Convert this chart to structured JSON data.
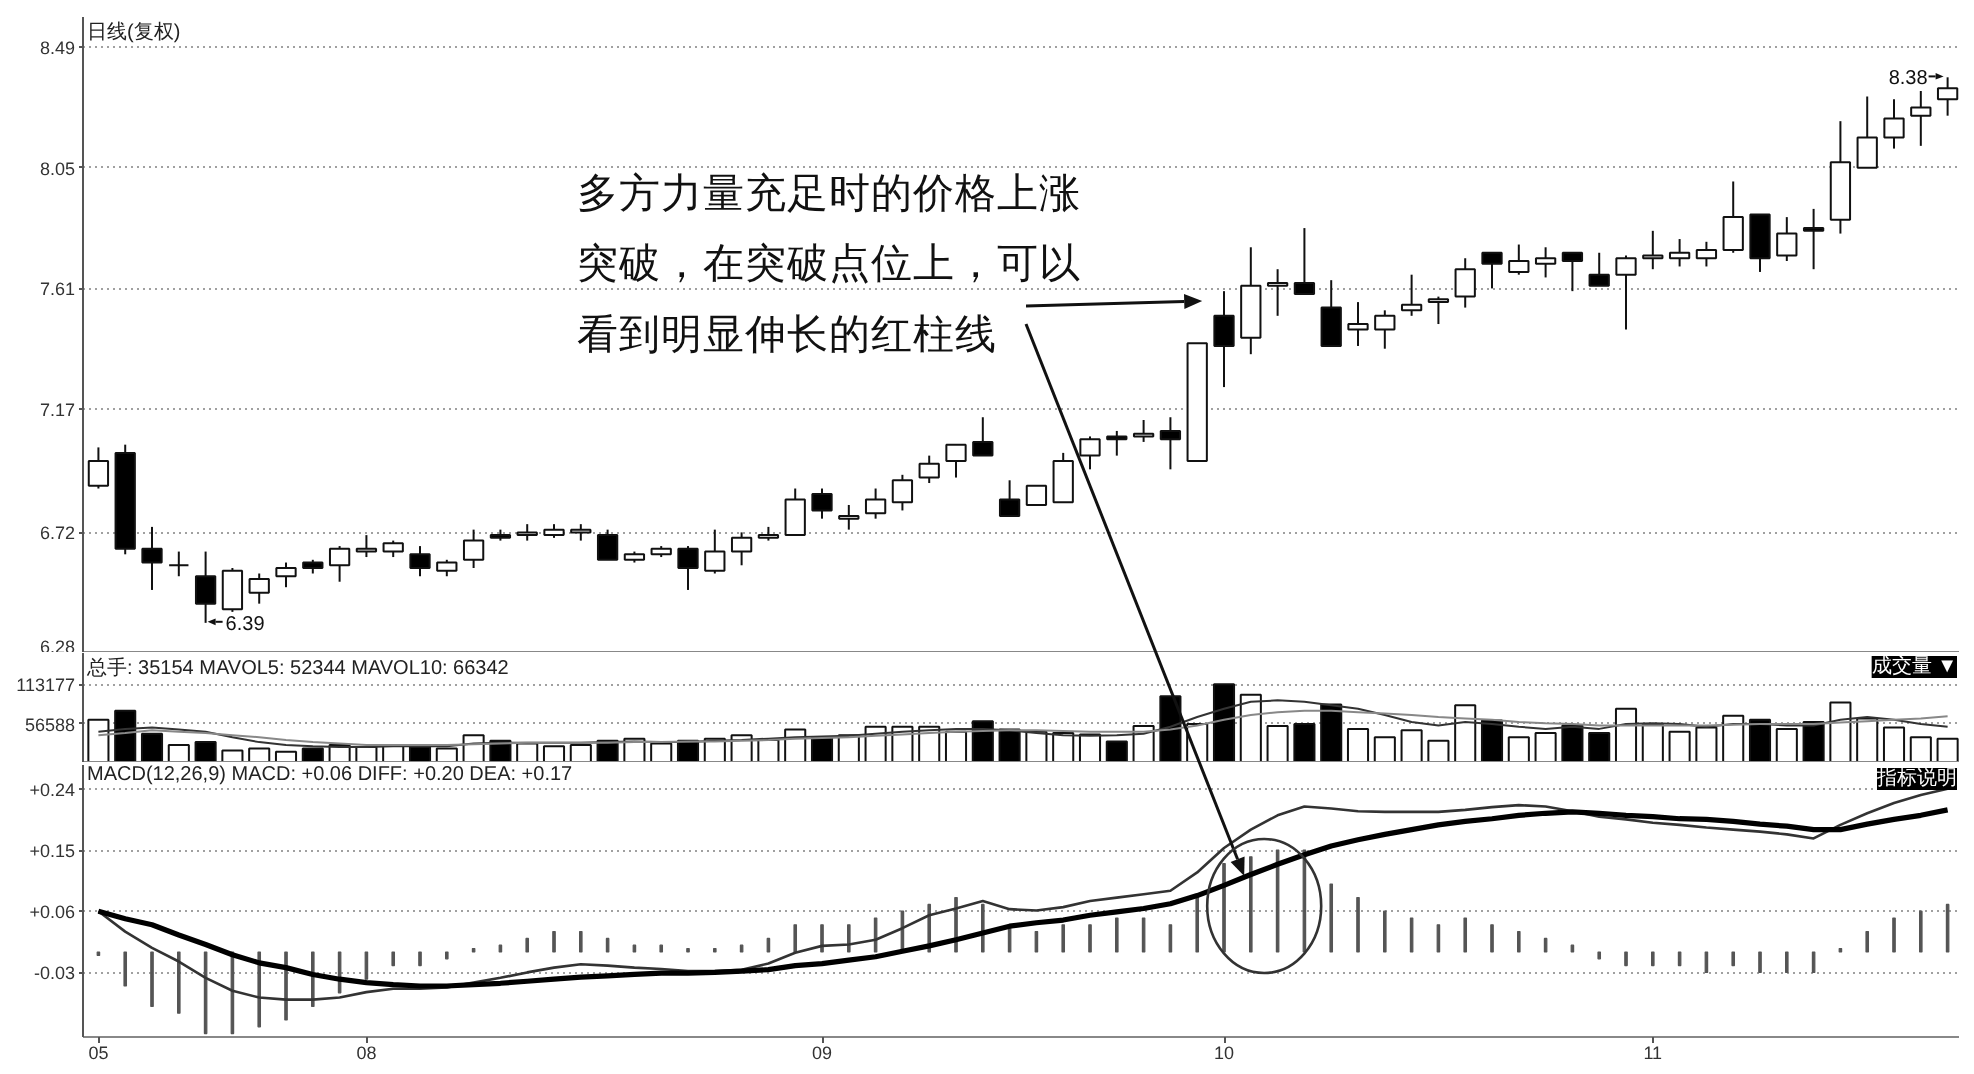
{
  "chart_data": [
    {
      "type": "candlestick",
      "title": "日线(复权)",
      "categories": [
        "05",
        null,
        null,
        null,
        null,
        null,
        null,
        null,
        null,
        null,
        "08",
        null,
        null,
        null,
        null,
        null,
        null,
        null,
        null,
        null,
        null,
        null,
        null,
        null,
        null,
        null,
        null,
        "09",
        null,
        null,
        null,
        null,
        null,
        null,
        null,
        null,
        null,
        null,
        null,
        null,
        null,
        null,
        "10",
        null,
        null,
        null,
        null,
        null,
        null,
        null,
        null,
        null,
        null,
        null,
        null,
        null,
        null,
        null,
        "11",
        null,
        null,
        null,
        null,
        null,
        null,
        null,
        null,
        null,
        null,
        null
      ],
      "ohlc": [
        [
          6.89,
          7.03,
          6.88,
          6.98
        ],
        [
          7.01,
          7.04,
          6.64,
          6.66
        ],
        [
          6.66,
          6.74,
          6.51,
          6.61
        ],
        [
          6.6,
          6.65,
          6.56,
          6.6
        ],
        [
          6.56,
          6.65,
          6.39,
          6.46
        ],
        [
          6.44,
          6.59,
          6.43,
          6.58
        ],
        [
          6.5,
          6.57,
          6.46,
          6.55
        ],
        [
          6.56,
          6.61,
          6.52,
          6.59
        ],
        [
          6.61,
          6.62,
          6.57,
          6.59
        ],
        [
          6.6,
          6.67,
          6.54,
          6.66
        ],
        [
          6.65,
          6.71,
          6.63,
          6.66
        ],
        [
          6.65,
          6.69,
          6.63,
          6.68
        ],
        [
          6.64,
          6.67,
          6.56,
          6.59
        ],
        [
          6.58,
          6.62,
          6.56,
          6.61
        ],
        [
          6.62,
          6.73,
          6.59,
          6.69
        ],
        [
          6.71,
          6.73,
          6.69,
          6.7
        ],
        [
          6.71,
          6.75,
          6.69,
          6.72
        ],
        [
          6.71,
          6.75,
          6.7,
          6.73
        ],
        [
          6.72,
          6.75,
          6.69,
          6.73
        ],
        [
          6.71,
          6.73,
          6.62,
          6.62
        ],
        [
          6.62,
          6.65,
          6.61,
          6.64
        ],
        [
          6.64,
          6.67,
          6.63,
          6.66
        ],
        [
          6.66,
          6.67,
          6.51,
          6.59
        ],
        [
          6.58,
          6.73,
          6.57,
          6.65
        ],
        [
          6.65,
          6.72,
          6.6,
          6.7
        ],
        [
          6.7,
          6.74,
          6.69,
          6.71
        ],
        [
          6.71,
          6.88,
          6.71,
          6.84
        ],
        [
          6.86,
          6.88,
          6.77,
          6.8
        ],
        [
          6.77,
          6.82,
          6.73,
          6.78
        ],
        [
          6.79,
          6.88,
          6.77,
          6.84
        ],
        [
          6.83,
          6.93,
          6.8,
          6.91
        ],
        [
          6.92,
          7.0,
          6.9,
          6.97
        ],
        [
          6.98,
          7.04,
          6.92,
          7.04
        ],
        [
          7.05,
          7.14,
          7.0,
          7.0
        ],
        [
          6.84,
          6.91,
          6.78,
          6.78
        ],
        [
          6.82,
          6.89,
          6.82,
          6.89
        ],
        [
          6.83,
          7.01,
          6.83,
          6.98
        ],
        [
          7.0,
          7.07,
          6.95,
          7.06
        ],
        [
          7.07,
          7.09,
          7.0,
          7.06
        ],
        [
          7.07,
          7.13,
          7.05,
          7.08
        ],
        [
          7.09,
          7.14,
          6.95,
          7.06
        ],
        [
          6.98,
          7.41,
          6.98,
          7.41
        ],
        [
          7.51,
          7.6,
          7.25,
          7.4
        ],
        [
          7.43,
          7.76,
          7.37,
          7.62
        ],
        [
          7.62,
          7.68,
          7.51,
          7.63
        ],
        [
          7.63,
          7.83,
          7.59,
          7.59
        ],
        [
          7.54,
          7.64,
          7.4,
          7.4
        ],
        [
          7.46,
          7.56,
          7.4,
          7.48
        ],
        [
          7.46,
          7.53,
          7.39,
          7.51
        ],
        [
          7.53,
          7.66,
          7.51,
          7.55
        ],
        [
          7.56,
          7.58,
          7.48,
          7.57
        ],
        [
          7.58,
          7.72,
          7.54,
          7.68
        ],
        [
          7.74,
          7.74,
          7.61,
          7.7
        ],
        [
          7.67,
          7.77,
          7.66,
          7.71
        ],
        [
          7.7,
          7.76,
          7.65,
          7.72
        ],
        [
          7.74,
          7.74,
          7.6,
          7.71
        ],
        [
          7.66,
          7.74,
          7.62,
          7.62
        ],
        [
          7.66,
          7.73,
          7.46,
          7.72
        ],
        [
          7.72,
          7.82,
          7.68,
          7.73
        ],
        [
          7.72,
          7.79,
          7.69,
          7.74
        ],
        [
          7.72,
          7.78,
          7.69,
          7.75
        ],
        [
          7.75,
          8.0,
          7.74,
          7.87
        ],
        [
          7.88,
          7.88,
          7.67,
          7.72
        ],
        [
          7.73,
          7.87,
          7.71,
          7.81
        ],
        [
          7.83,
          7.9,
          7.68,
          7.82
        ],
        [
          7.86,
          8.22,
          7.81,
          8.07
        ],
        [
          8.05,
          8.31,
          8.05,
          8.16
        ],
        [
          8.16,
          8.3,
          8.12,
          8.23
        ],
        [
          8.24,
          8.33,
          8.13,
          8.27
        ],
        [
          8.3,
          8.38,
          8.24,
          8.34
        ]
      ],
      "colors": [
        "#ffffff",
        "#000000",
        "#000000",
        "#111111",
        "#000000",
        "#ffffff",
        "#ffffff",
        "#ffffff",
        "#000000",
        "#ffffff",
        "#ffffff",
        "#ffffff",
        "#000000",
        "#ffffff",
        "#ffffff",
        "#000000",
        "#ffffff",
        "#ffffff",
        "#ffffff",
        "#000000",
        "#ffffff",
        "#ffffff",
        "#000000",
        "#ffffff",
        "#ffffff",
        "#ffffff",
        "#ffffff",
        "#000000",
        "#ffffff",
        "#ffffff",
        "#ffffff",
        "#ffffff",
        "#ffffff",
        "#000000",
        "#000000",
        "#ffffff",
        "#ffffff",
        "#ffffff",
        "#000000",
        "#ffffff",
        "#000000",
        "#ffffff",
        "#000000",
        "#ffffff",
        "#ffffff",
        "#000000",
        "#000000",
        "#ffffff",
        "#ffffff",
        "#ffffff",
        "#ffffff",
        "#ffffff",
        "#000000",
        "#ffffff",
        "#ffffff",
        "#000000",
        "#000000",
        "#ffffff",
        "#ffffff",
        "#ffffff",
        "#ffffff",
        "#ffffff",
        "#000000",
        "#ffffff",
        "#000000",
        "#ffffff",
        "#ffffff",
        "#ffffff",
        "#ffffff",
        "#ffffff"
      ],
      "ylim": [
        6.28,
        8.6
      ],
      "yticks": [
        6.28,
        6.72,
        7.17,
        7.61,
        8.05,
        8.49
      ],
      "grid": "y",
      "tick_labels": "y",
      "annotations": [
        "6.39",
        "8.38",
        "多方力量充足时的价格上涨突破，在突破点位上，可以看到明显伸长的红柱线"
      ]
    },
    {
      "type": "bar",
      "title": "总手: 35154 MAVOL5: 52344 MAVOL10: 66342",
      "categories": [
        "05",
        null,
        null,
        null,
        null,
        null,
        null,
        null,
        null,
        null,
        "08",
        null,
        null,
        null,
        null,
        null,
        null,
        null,
        null,
        null,
        null,
        null,
        null,
        null,
        null,
        null,
        null,
        "09",
        null,
        null,
        null,
        null,
        null,
        null,
        null,
        null,
        null,
        null,
        null,
        null,
        null,
        null,
        "10",
        null,
        null,
        null,
        null,
        null,
        null,
        null,
        null,
        null,
        null,
        null,
        null,
        null,
        null,
        null,
        "11",
        null,
        null,
        null,
        null,
        null,
        null,
        null,
        null,
        null,
        null,
        null
      ],
      "series": [
        {
          "values": [
            62000,
            75000,
            42000,
            26000,
            30000,
            18000,
            21000,
            16000,
            21000,
            26000,
            23000,
            26000,
            23000,
            21000,
            40000,
            32000,
            28000,
            24000,
            26000,
            32000,
            35000,
            28000,
            32000,
            35000,
            40000,
            33000,
            48000,
            37000,
            40000,
            52000,
            52000,
            52000,
            45000,
            60000,
            48000,
            45000,
            43000,
            41000,
            31000,
            53000,
            96000,
            56000,
            113000,
            98000,
            53000,
            56000,
            84000,
            49000,
            37000,
            47000,
            32000,
            83000,
            61000,
            37000,
            43000,
            54000,
            43000,
            78000,
            56000,
            45000,
            51000,
            68000,
            62000,
            49000,
            59000,
            87000,
            64000,
            51000,
            37000,
            35000
          ],
          "colors": [
            "#ffffff",
            "#000000",
            "#000000",
            "#ffffff",
            "#000000",
            "#ffffff",
            "#ffffff",
            "#ffffff",
            "#000000",
            "#ffffff",
            "#ffffff",
            "#ffffff",
            "#000000",
            "#ffffff",
            "#ffffff",
            "#000000",
            "#ffffff",
            "#ffffff",
            "#ffffff",
            "#000000",
            "#ffffff",
            "#ffffff",
            "#000000",
            "#ffffff",
            "#ffffff",
            "#ffffff",
            "#ffffff",
            "#000000",
            "#ffffff",
            "#ffffff",
            "#ffffff",
            "#ffffff",
            "#ffffff",
            "#000000",
            "#000000",
            "#ffffff",
            "#ffffff",
            "#ffffff",
            "#000000",
            "#ffffff",
            "#000000",
            "#ffffff",
            "#000000",
            "#ffffff",
            "#ffffff",
            "#000000",
            "#000000",
            "#ffffff",
            "#ffffff",
            "#ffffff",
            "#ffffff",
            "#ffffff",
            "#000000",
            "#ffffff",
            "#ffffff",
            "#000000",
            "#000000",
            "#ffffff",
            "#ffffff",
            "#ffffff",
            "#ffffff",
            "#ffffff",
            "#000000",
            "#ffffff",
            "#000000",
            "#ffffff",
            "#ffffff",
            "#ffffff",
            "#ffffff",
            "#ffffff"
          ]
        },
        {
          "type": "line",
          "color": "#333333",
          "values": [
            45000,
            49000,
            51000,
            48000,
            45000,
            37000,
            30000,
            26000,
            24000,
            23000,
            23000,
            24000,
            24000,
            24000,
            28000,
            29000,
            29000,
            29000,
            29000,
            30000,
            31000,
            30000,
            30000,
            32000,
            33000,
            35000,
            37000,
            38000,
            39000,
            42000,
            45000,
            47000,
            49000,
            49000,
            47000,
            43000,
            40000,
            39000,
            40000,
            42000,
            52000,
            66000,
            78000,
            88000,
            90000,
            88000,
            83000,
            78000,
            69000,
            59000,
            54000,
            59000,
            56000,
            52000,
            49000,
            52000,
            49000,
            56000,
            57000,
            56000,
            52000,
            56000,
            56000,
            54000,
            54000,
            62000,
            66000,
            62000,
            56000,
            52000
          ]
        },
        {
          "type": "line",
          "color": "#888888",
          "values": [
            40000,
            43000,
            47000,
            45000,
            43000,
            40000,
            37000,
            33000,
            30000,
            28000,
            26000,
            26000,
            26000,
            26000,
            27000,
            28000,
            29000,
            29000,
            29000,
            29000,
            30000,
            30000,
            31000,
            31000,
            32000,
            33000,
            35000,
            36000,
            37000,
            39000,
            41000,
            43000,
            45000,
            46000,
            47000,
            47000,
            46000,
            45000,
            45000,
            45000,
            48000,
            54000,
            62000,
            69000,
            73000,
            75000,
            75000,
            73000,
            71000,
            69000,
            66000,
            64000,
            62000,
            59000,
            57000,
            56000,
            54000,
            54000,
            54000,
            54000,
            54000,
            55000,
            56000,
            56000,
            56000,
            58000,
            60000,
            62000,
            64000,
            67000
          ]
        }
      ],
      "ylim": [
        0,
        158000
      ],
      "yticks": [
        56588,
        113177
      ],
      "grid": "y",
      "tick_labels": "y",
      "annotations": [
        "成交量 ▼"
      ]
    },
    {
      "type": "line",
      "title": "MACD(12,26,9) MACD: +0.06 DIFF: +0.20 DEA: +0.17",
      "categories": [
        "05",
        null,
        null,
        null,
        null,
        null,
        null,
        null,
        null,
        null,
        "08",
        null,
        null,
        null,
        null,
        null,
        null,
        null,
        null,
        null,
        null,
        null,
        null,
        null,
        null,
        null,
        null,
        "09",
        null,
        null,
        null,
        null,
        null,
        null,
        null,
        null,
        null,
        null,
        null,
        null,
        null,
        null,
        "10",
        null,
        null,
        null,
        null,
        null,
        null,
        null,
        null,
        null,
        null,
        null,
        null,
        null,
        null,
        null,
        "11",
        null,
        null,
        null,
        null,
        null,
        null,
        null,
        null,
        null,
        null,
        null
      ],
      "series": [
        {
          "type": "bar",
          "color": "#555555",
          "values": [
            -0.005,
            -0.05,
            -0.08,
            -0.09,
            -0.12,
            -0.12,
            -0.11,
            -0.1,
            -0.08,
            -0.06,
            -0.04,
            -0.02,
            -0.02,
            -0.01,
            0.005,
            0.01,
            0.02,
            0.03,
            0.03,
            0.02,
            0.01,
            0.01,
            0.005,
            0.005,
            0.01,
            0.02,
            0.04,
            0.04,
            0.04,
            0.05,
            0.06,
            0.07,
            0.08,
            0.07,
            0.04,
            0.03,
            0.04,
            0.04,
            0.05,
            0.05,
            0.04,
            0.08,
            0.13,
            0.14,
            0.15,
            0.15,
            0.1,
            0.08,
            0.06,
            0.05,
            0.04,
            0.05,
            0.04,
            0.03,
            0.02,
            0.01,
            -0.01,
            -0.02,
            -0.02,
            -0.02,
            -0.03,
            -0.02,
            -0.03,
            -0.03,
            -0.03,
            0.005,
            0.03,
            0.05,
            0.06,
            0.07
          ]
        },
        {
          "color": "#333333",
          "values": [
            0.06,
            0.03,
            0.006,
            -0.014,
            -0.038,
            -0.057,
            -0.067,
            -0.07,
            -0.07,
            -0.067,
            -0.059,
            -0.054,
            -0.054,
            -0.052,
            -0.045,
            -0.038,
            -0.03,
            -0.023,
            -0.018,
            -0.02,
            -0.023,
            -0.025,
            -0.028,
            -0.028,
            -0.026,
            -0.017,
            -0.001,
            0.009,
            0.011,
            0.018,
            0.035,
            0.054,
            0.064,
            0.075,
            0.063,
            0.061,
            0.066,
            0.075,
            0.08,
            0.085,
            0.09,
            0.117,
            0.153,
            0.18,
            0.201,
            0.214,
            0.211,
            0.207,
            0.206,
            0.206,
            0.206,
            0.209,
            0.213,
            0.216,
            0.214,
            0.207,
            0.199,
            0.195,
            0.19,
            0.187,
            0.183,
            0.18,
            0.177,
            0.173,
            0.167,
            0.187,
            0.204,
            0.219,
            0.231,
            0.24
          ]
        },
        {
          "color": "#000000",
          "values": [
            0.06,
            0.049,
            0.04,
            0.025,
            0.011,
            -0.004,
            -0.016,
            -0.023,
            -0.033,
            -0.04,
            -0.045,
            -0.048,
            -0.05,
            -0.05,
            -0.048,
            -0.046,
            -0.043,
            -0.04,
            -0.037,
            -0.035,
            -0.033,
            -0.031,
            -0.031,
            -0.03,
            -0.028,
            -0.026,
            -0.02,
            -0.017,
            -0.012,
            -0.007,
            0.001,
            0.009,
            0.018,
            0.028,
            0.038,
            0.043,
            0.047,
            0.054,
            0.059,
            0.064,
            0.071,
            0.083,
            0.098,
            0.114,
            0.129,
            0.143,
            0.156,
            0.165,
            0.173,
            0.18,
            0.187,
            0.192,
            0.196,
            0.201,
            0.204,
            0.206,
            0.204,
            0.201,
            0.199,
            0.196,
            0.195,
            0.192,
            0.188,
            0.185,
            0.18,
            0.18,
            0.188,
            0.195,
            0.201,
            0.209
          ]
        }
      ],
      "ylim": [
        -0.125,
        0.275
      ],
      "yticks": [
        -0.03,
        {
          "value": 0.06,
          "label": "+0.06"
        },
        {
          "value": 0.15,
          "label": "+0.15"
        },
        {
          "value": 0.24,
          "label": "+0.24"
        }
      ],
      "grid": "y",
      "annotations": [
        "指标说明"
      ]
    }
  ]
}
